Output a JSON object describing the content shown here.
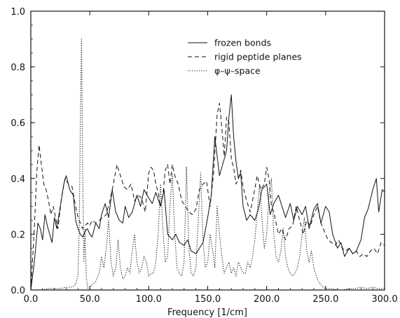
{
  "chart_data": {
    "type": "line",
    "title": "",
    "xlabel": "Frequency [1/cm]",
    "ylabel": "",
    "xlim": [
      0,
      300
    ],
    "ylim": [
      0,
      1
    ],
    "grid": false,
    "legend_position": "top-center",
    "x_ticks": [
      "0.0",
      "50.0",
      "100.0",
      "150.0",
      "200.0",
      "250.0",
      "300.0"
    ],
    "y_ticks": [
      "0.0",
      "0.2",
      "0.4",
      "0.6",
      "0.8",
      "1.0"
    ],
    "series": [
      {
        "name": "frozen bonds",
        "style": "solid",
        "color": "#111111",
        "x": [
          0,
          3,
          6,
          8,
          10,
          12,
          14,
          16,
          18,
          20,
          22,
          25,
          28,
          30,
          33,
          36,
          38,
          40,
          42,
          44,
          46,
          48,
          50,
          52,
          55,
          58,
          60,
          63,
          66,
          69,
          72,
          75,
          78,
          80,
          83,
          86,
          90,
          93,
          96,
          100,
          103,
          106,
          110,
          113,
          116,
          120,
          123,
          126,
          130,
          133,
          136,
          140,
          143,
          146,
          150,
          153,
          156,
          158,
          160,
          162,
          164,
          166,
          168,
          170,
          172,
          174,
          176,
          178,
          180,
          183,
          186,
          190,
          193,
          196,
          200,
          203,
          206,
          210,
          213,
          216,
          220,
          223,
          226,
          230,
          233,
          236,
          240,
          243,
          246,
          250,
          253,
          256,
          260,
          263,
          266,
          270,
          273,
          276,
          280,
          283,
          286,
          290,
          293,
          295,
          298,
          300
        ],
        "y": [
          0.0,
          0.1,
          0.24,
          0.22,
          0.18,
          0.27,
          0.23,
          0.2,
          0.17,
          0.26,
          0.22,
          0.3,
          0.38,
          0.41,
          0.36,
          0.34,
          0.25,
          0.22,
          0.2,
          0.19,
          0.21,
          0.22,
          0.2,
          0.19,
          0.24,
          0.22,
          0.27,
          0.31,
          0.26,
          0.36,
          0.28,
          0.25,
          0.24,
          0.3,
          0.26,
          0.28,
          0.34,
          0.3,
          0.36,
          0.33,
          0.31,
          0.35,
          0.3,
          0.36,
          0.2,
          0.18,
          0.2,
          0.17,
          0.16,
          0.18,
          0.14,
          0.13,
          0.15,
          0.17,
          0.26,
          0.34,
          0.55,
          0.48,
          0.41,
          0.44,
          0.47,
          0.5,
          0.62,
          0.7,
          0.55,
          0.46,
          0.4,
          0.42,
          0.3,
          0.25,
          0.27,
          0.25,
          0.29,
          0.36,
          0.38,
          0.27,
          0.31,
          0.34,
          0.3,
          0.26,
          0.31,
          0.25,
          0.3,
          0.27,
          0.3,
          0.22,
          0.29,
          0.31,
          0.24,
          0.3,
          0.28,
          0.2,
          0.15,
          0.17,
          0.12,
          0.15,
          0.13,
          0.14,
          0.18,
          0.26,
          0.29,
          0.36,
          0.4,
          0.28,
          0.36,
          0.35
        ]
      },
      {
        "name": "rigid peptide planes",
        "style": "dashed",
        "color": "#111111",
        "x": [
          0,
          3,
          5,
          7,
          9,
          11,
          13,
          15,
          17,
          19,
          21,
          23,
          26,
          29,
          32,
          35,
          38,
          40,
          42,
          44,
          46,
          48,
          50,
          52,
          55,
          58,
          61,
          64,
          67,
          70,
          73,
          76,
          79,
          82,
          85,
          88,
          91,
          94,
          97,
          100,
          102,
          104,
          106,
          108,
          110,
          112,
          114,
          116,
          118,
          120,
          122,
          125,
          128,
          131,
          134,
          137,
          140,
          143,
          146,
          149,
          152,
          155,
          158,
          160,
          162,
          164,
          166,
          168,
          170,
          172,
          174,
          176,
          178,
          180,
          183,
          186,
          189,
          192,
          195,
          198,
          200,
          202,
          204,
          206,
          208,
          210,
          213,
          216,
          219,
          222,
          225,
          228,
          231,
          234,
          237,
          240,
          243,
          246,
          249,
          252,
          255,
          258,
          261,
          264,
          267,
          270,
          273,
          276,
          279,
          282,
          285,
          288,
          291,
          294,
          297,
          300
        ],
        "y": [
          0.0,
          0.22,
          0.42,
          0.52,
          0.45,
          0.38,
          0.36,
          0.32,
          0.27,
          0.3,
          0.26,
          0.22,
          0.33,
          0.4,
          0.38,
          0.37,
          0.3,
          0.26,
          0.24,
          0.22,
          0.23,
          0.24,
          0.23,
          0.25,
          0.24,
          0.25,
          0.26,
          0.27,
          0.32,
          0.38,
          0.45,
          0.41,
          0.37,
          0.36,
          0.38,
          0.32,
          0.34,
          0.33,
          0.28,
          0.42,
          0.44,
          0.43,
          0.38,
          0.35,
          0.3,
          0.34,
          0.43,
          0.45,
          0.38,
          0.45,
          0.41,
          0.38,
          0.32,
          0.3,
          0.28,
          0.27,
          0.29,
          0.36,
          0.38,
          0.39,
          0.3,
          0.42,
          0.63,
          0.67,
          0.58,
          0.48,
          0.62,
          0.6,
          0.47,
          0.44,
          0.38,
          0.4,
          0.43,
          0.37,
          0.32,
          0.28,
          0.34,
          0.41,
          0.36,
          0.38,
          0.44,
          0.4,
          0.3,
          0.28,
          0.24,
          0.2,
          0.22,
          0.18,
          0.22,
          0.23,
          0.3,
          0.25,
          0.2,
          0.25,
          0.23,
          0.27,
          0.3,
          0.24,
          0.21,
          0.18,
          0.17,
          0.16,
          0.18,
          0.15,
          0.14,
          0.15,
          0.13,
          0.14,
          0.12,
          0.13,
          0.12,
          0.14,
          0.15,
          0.13,
          0.17,
          0.16
        ]
      },
      {
        "name": "φ–ψ–space",
        "style": "dotted",
        "color": "#111111",
        "x": [
          0,
          5,
          10,
          15,
          20,
          25,
          30,
          35,
          38,
          40,
          41,
          42,
          43,
          44,
          45,
          46,
          47,
          48,
          49,
          50,
          52,
          55,
          58,
          60,
          62,
          64,
          66,
          68,
          70,
          72,
          74,
          76,
          78,
          80,
          82,
          84,
          86,
          88,
          90,
          92,
          94,
          96,
          98,
          100,
          102,
          104,
          106,
          108,
          110,
          112,
          114,
          116,
          118,
          120,
          122,
          124,
          126,
          128,
          130,
          132,
          134,
          136,
          138,
          140,
          142,
          144,
          146,
          148,
          150,
          152,
          154,
          156,
          158,
          160,
          162,
          164,
          166,
          168,
          170,
          172,
          174,
          176,
          178,
          180,
          182,
          184,
          186,
          188,
          190,
          192,
          194,
          196,
          198,
          200,
          202,
          204,
          206,
          208,
          210,
          212,
          214,
          216,
          218,
          220,
          222,
          224,
          226,
          228,
          230,
          232,
          234,
          236,
          238,
          240,
          242,
          244,
          246,
          248,
          250,
          255,
          260,
          265,
          270,
          275,
          280,
          285,
          290,
          295,
          300
        ],
        "y": [
          0.0,
          0.0,
          0.0,
          0.005,
          0.005,
          0.005,
          0.01,
          0.01,
          0.02,
          0.05,
          0.2,
          0.6,
          0.9,
          0.4,
          0.1,
          0.22,
          0.05,
          0.01,
          0.0,
          0.005,
          0.02,
          0.03,
          0.06,
          0.12,
          0.08,
          0.15,
          0.25,
          0.1,
          0.05,
          0.08,
          0.18,
          0.08,
          0.04,
          0.05,
          0.08,
          0.06,
          0.14,
          0.2,
          0.1,
          0.06,
          0.08,
          0.12,
          0.1,
          0.05,
          0.06,
          0.06,
          0.1,
          0.2,
          0.38,
          0.22,
          0.1,
          0.12,
          0.3,
          0.42,
          0.2,
          0.08,
          0.06,
          0.05,
          0.1,
          0.44,
          0.15,
          0.06,
          0.05,
          0.08,
          0.25,
          0.42,
          0.18,
          0.08,
          0.1,
          0.2,
          0.15,
          0.08,
          0.3,
          0.2,
          0.12,
          0.06,
          0.08,
          0.1,
          0.06,
          0.08,
          0.05,
          0.1,
          0.08,
          0.06,
          0.06,
          0.1,
          0.08,
          0.12,
          0.18,
          0.28,
          0.38,
          0.26,
          0.15,
          0.2,
          0.34,
          0.4,
          0.2,
          0.12,
          0.1,
          0.14,
          0.22,
          0.12,
          0.08,
          0.06,
          0.05,
          0.06,
          0.08,
          0.12,
          0.2,
          0.26,
          0.14,
          0.1,
          0.14,
          0.08,
          0.05,
          0.03,
          0.02,
          0.01,
          0.005,
          0.005,
          0.0,
          0.0,
          0.005,
          0.005,
          0.01,
          0.005,
          0.01,
          0.005,
          0.005
        ]
      }
    ]
  }
}
